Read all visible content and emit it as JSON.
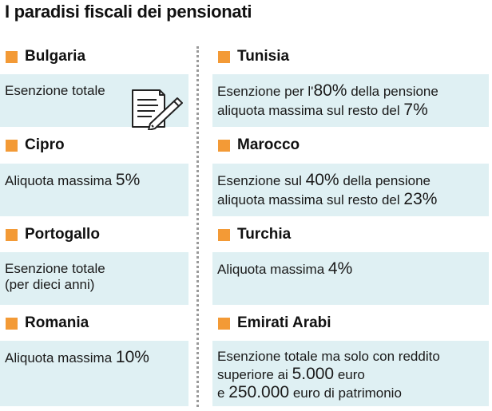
{
  "title": "I paradisi fiscali dei pensionati",
  "colors": {
    "accent": "#f39a36",
    "box_bg": "#dff0f3"
  },
  "left": [
    {
      "country": "Bulgaria",
      "text": "Esenzione totale",
      "icon": "document-pen-icon"
    },
    {
      "country": "Cipro",
      "text_pre": "Aliquota massima ",
      "text_num": "5%"
    },
    {
      "country": "Portogallo",
      "line1": "Esenzione totale",
      "line2": "(per dieci anni)"
    },
    {
      "country": "Romania",
      "text_pre": "Aliquota massima ",
      "text_num": "10%"
    }
  ],
  "right": [
    {
      "country": "Tunisia",
      "l1_pre": "Esenzione per l'",
      "l1_num": "80%",
      "l1_post": " della pensione",
      "l2_pre": "aliquota massima sul resto del ",
      "l2_num": "7%"
    },
    {
      "country": "Marocco",
      "l1_pre": "Esenzione sul ",
      "l1_num": "40%",
      "l1_post": " della pensione",
      "l2_pre": "aliquota massima sul resto del ",
      "l2_num": "23%"
    },
    {
      "country": "Turchia",
      "text_pre": "Aliquota massima ",
      "text_num": "4%"
    },
    {
      "country": "Emirati Arabi",
      "l1": "Esenzione totale ma solo con reddito",
      "l2_pre": "superiore ai ",
      "l2_num": "5.000",
      "l2_post": " euro",
      "l3_pre": "e ",
      "l3_num": "250.000",
      "l3_post": " euro di patrimonio"
    }
  ]
}
